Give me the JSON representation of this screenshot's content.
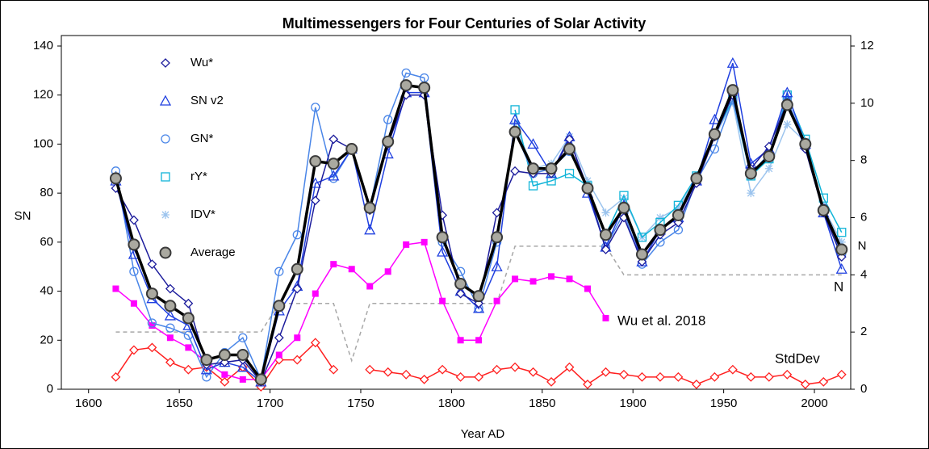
{
  "chart_data": {
    "type": "line",
    "title": "Multimessengers for Four Centuries of Solar Activity",
    "xlabel": "Year AD",
    "ylabel": "SN",
    "y2label": "N",
    "xlim": [
      1585,
      2020
    ],
    "xticks": [
      1600,
      1650,
      1700,
      1750,
      1800,
      1850,
      1900,
      1950,
      2000
    ],
    "ylim": [
      0,
      140
    ],
    "yticks": [
      0,
      20,
      40,
      60,
      80,
      100,
      120,
      140
    ],
    "y2lim": [
      0,
      12
    ],
    "y2ticks": [
      0,
      2,
      4,
      6,
      8,
      10,
      12
    ],
    "grid": false,
    "legend": "upper left",
    "x": [
      1615,
      1625,
      1635,
      1645,
      1655,
      1665,
      1675,
      1685,
      1695,
      1705,
      1715,
      1725,
      1735,
      1745,
      1755,
      1765,
      1775,
      1785,
      1795,
      1805,
      1815,
      1825,
      1835,
      1845,
      1855,
      1865,
      1875,
      1885,
      1895,
      1905,
      1915,
      1925,
      1935,
      1945,
      1955,
      1965,
      1975,
      1985,
      1995,
      2005,
      2015
    ],
    "series": [
      {
        "name": "Wu*",
        "color": "#1c1c9c",
        "marker": "diamond",
        "values": [
          82,
          69,
          51,
          41,
          35,
          10,
          11,
          12,
          3,
          21,
          41,
          77,
          102,
          98,
          73,
          100,
          120,
          120,
          71,
          39,
          35,
          72,
          89,
          88,
          88,
          102,
          82,
          57,
          70,
          52,
          63,
          68,
          84,
          103,
          120,
          90,
          99,
          117,
          98,
          72,
          54
        ]
      },
      {
        "name": "SN v2",
        "color": "#2040e0",
        "marker": "triangle",
        "values": [
          85,
          55,
          37,
          30,
          26,
          8,
          11,
          9,
          3,
          32,
          42,
          84,
          87,
          98,
          65,
          96,
          121,
          121,
          56,
          40,
          33,
          50,
          110,
          100,
          88,
          103,
          80,
          58,
          75,
          52,
          65,
          70,
          85,
          110,
          133,
          92,
          98,
          121,
          100,
          72,
          49
        ]
      },
      {
        "name": "GN*",
        "color": "#4a86e8",
        "marker": "circle",
        "values": [
          89,
          48,
          27,
          25,
          22,
          5,
          15,
          21,
          4,
          48,
          63,
          115,
          86,
          98,
          74,
          110,
          129,
          127,
          60,
          48,
          33,
          60,
          105,
          88,
          90,
          97,
          82,
          58,
          72,
          51,
          60,
          65,
          85,
          98,
          118,
          88,
          96,
          118,
          100,
          74,
          55
        ]
      },
      {
        "name": "rY*",
        "color": "#10b4d8",
        "marker": "square",
        "values": [
          null,
          null,
          null,
          null,
          null,
          null,
          null,
          null,
          null,
          null,
          null,
          null,
          null,
          null,
          null,
          null,
          null,
          null,
          null,
          null,
          null,
          null,
          114,
          83,
          85,
          88,
          83,
          63,
          79,
          62,
          68,
          75,
          87,
          104,
          118,
          87,
          94,
          120,
          102,
          78,
          64
        ]
      },
      {
        "name": "IDV*",
        "color": "#9cc4ee",
        "marker": "asterisk",
        "values": [
          null,
          null,
          null,
          null,
          null,
          null,
          null,
          null,
          null,
          null,
          null,
          null,
          null,
          null,
          null,
          null,
          null,
          null,
          null,
          null,
          null,
          null,
          108,
          90,
          92,
          103,
          85,
          72,
          78,
          62,
          70,
          74,
          86,
          103,
          117,
          80,
          90,
          108,
          101,
          74,
          60
        ]
      },
      {
        "name": "Average",
        "color": "#000000",
        "marker": "gray-circle",
        "values": [
          86,
          59,
          39,
          34,
          29,
          12,
          14,
          14,
          4,
          34,
          49,
          93,
          92,
          98,
          74,
          101,
          124,
          123,
          62,
          43,
          38,
          62,
          105,
          90,
          90,
          98,
          82,
          63,
          74,
          55,
          65,
          71,
          86,
          104,
          122,
          88,
          95,
          116,
          100,
          73,
          57
        ]
      }
    ],
    "labeled_series": [
      {
        "name": "Wu et al. 2018",
        "color": "#ff00ff",
        "marker": "filled-square",
        "values": [
          41,
          35,
          26,
          21,
          17,
          11,
          6,
          4,
          4,
          14,
          21,
          39,
          51,
          49,
          42,
          48,
          59,
          60,
          36,
          20,
          20,
          36,
          45,
          44,
          46,
          45,
          41,
          29,
          null,
          null,
          null,
          null,
          null,
          null,
          null,
          null,
          null,
          null,
          null,
          null,
          null
        ]
      },
      {
        "name": "StdDev",
        "color": "#ff2020",
        "marker": "diamond",
        "values": [
          5,
          16,
          17,
          11,
          8,
          9,
          3,
          9,
          1,
          12,
          12,
          19,
          8,
          null,
          8,
          7,
          6,
          4,
          8,
          5,
          5,
          8,
          9,
          7,
          3,
          9,
          2,
          7,
          6,
          5,
          5,
          5,
          2,
          5,
          8,
          5,
          5,
          6,
          2,
          3,
          6
        ]
      },
      {
        "name": "N",
        "color": "#a8a8a8",
        "marker": "none",
        "dash": true,
        "axis": "y2",
        "values": [
          2,
          2,
          2,
          2,
          2,
          2,
          2,
          2,
          2,
          3,
          3,
          3,
          3,
          1,
          3,
          3,
          3,
          3,
          3,
          3,
          3,
          3,
          5,
          5,
          5,
          5,
          5,
          5,
          4,
          4,
          4,
          4,
          4,
          4,
          4,
          4,
          4,
          4,
          4,
          4,
          4
        ]
      }
    ]
  }
}
